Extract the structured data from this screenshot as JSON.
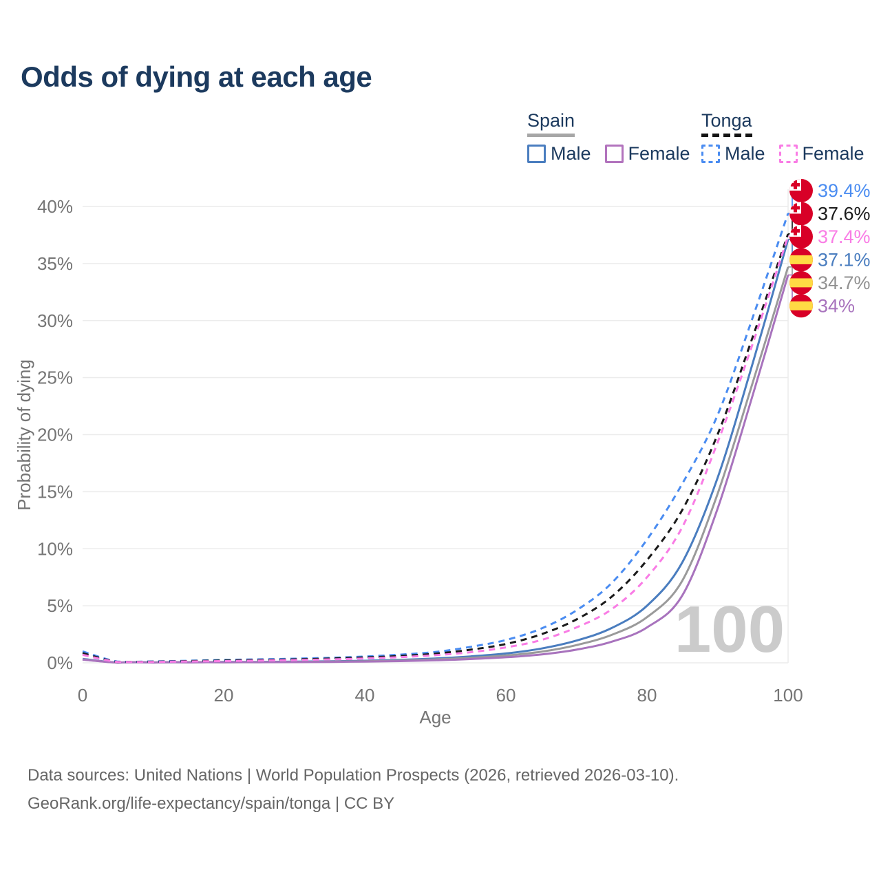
{
  "header": {
    "title": "Odds of dying at each age"
  },
  "legend": {
    "groups": [
      {
        "country": "Spain",
        "line_style": "solid",
        "underline_color": "#a6a6a6",
        "items": [
          {
            "label": "Male",
            "color": "#4a7dbf",
            "dashed": false
          },
          {
            "label": "Female",
            "color": "#b273bd",
            "dashed": false
          }
        ]
      },
      {
        "country": "Tonga",
        "line_style": "dashed",
        "underline_color": "#141414",
        "items": [
          {
            "label": "Male",
            "color": "#4a8cf1",
            "dashed": true
          },
          {
            "label": "Female",
            "color": "#f97ce5",
            "dashed": true
          }
        ]
      }
    ]
  },
  "chart_data": {
    "type": "line",
    "title": "Odds of dying at each age",
    "xlabel": "Age",
    "ylabel": "Probability of dying",
    "xlim": [
      0,
      100
    ],
    "ylim": [
      0,
      41.5
    ],
    "grid": "horizontal",
    "legend_position": "top-right",
    "age_watermark": "100",
    "x_ticks": [
      {
        "v": 0,
        "label": "0"
      },
      {
        "v": 20,
        "label": "20"
      },
      {
        "v": 40,
        "label": "40"
      },
      {
        "v": 60,
        "label": "60"
      },
      {
        "v": 80,
        "label": "80"
      },
      {
        "v": 100,
        "label": "100"
      }
    ],
    "y_ticks": [
      {
        "v": 0,
        "label": "0%"
      },
      {
        "v": 5,
        "label": "5%"
      },
      {
        "v": 10,
        "label": "10%"
      },
      {
        "v": 15,
        "label": "15%"
      },
      {
        "v": 20,
        "label": "20%"
      },
      {
        "v": 25,
        "label": "25%"
      },
      {
        "v": 30,
        "label": "30%"
      },
      {
        "v": 35,
        "label": "35%"
      },
      {
        "v": 40,
        "label": "40%"
      }
    ],
    "x": [
      0,
      5,
      10,
      15,
      20,
      25,
      30,
      35,
      40,
      45,
      50,
      55,
      60,
      65,
      70,
      75,
      80,
      85,
      90,
      95,
      100
    ],
    "series": [
      {
        "id": "tonga-male",
        "name": "Tonga Male",
        "country": "Tonga",
        "flag": "tonga",
        "color": "#4a8cf1",
        "label_color": "#4a8cf1",
        "dashed": true,
        "end_label": "39.4%",
        "values": [
          1.0,
          0.1,
          0.12,
          0.18,
          0.25,
          0.3,
          0.36,
          0.44,
          0.55,
          0.72,
          0.95,
          1.4,
          2.0,
          3.0,
          4.6,
          7.0,
          10.8,
          15.7,
          21.7,
          30.3,
          39.4
        ]
      },
      {
        "id": "tonga-total",
        "name": "Tonga",
        "country": "Tonga",
        "flag": "tonga",
        "color": "#1a1a1a",
        "label_color": "#1a1a1a",
        "dashed": true,
        "end_label": "37.6%",
        "values": [
          0.85,
          0.08,
          0.1,
          0.15,
          0.2,
          0.25,
          0.3,
          0.37,
          0.47,
          0.6,
          0.8,
          1.15,
          1.65,
          2.5,
          3.8,
          5.8,
          9.0,
          13.4,
          20.0,
          28.6,
          37.6
        ]
      },
      {
        "id": "tonga-female",
        "name": "Tonga Female",
        "country": "Tonga",
        "flag": "tonga",
        "color": "#f97ce5",
        "label_color": "#f97ce5",
        "dashed": true,
        "end_label": "37.4%",
        "values": [
          0.7,
          0.07,
          0.08,
          0.12,
          0.15,
          0.2,
          0.24,
          0.3,
          0.38,
          0.5,
          0.67,
          0.93,
          1.35,
          2.0,
          3.1,
          4.7,
          7.5,
          11.9,
          19.3,
          28.0,
          37.4
        ]
      },
      {
        "id": "spain-male",
        "name": "Spain Male",
        "country": "Spain",
        "flag": "spain",
        "color": "#4a7dbf",
        "label_color": "#4a7dbf",
        "dashed": false,
        "end_label": "37.1%",
        "values": [
          0.35,
          0.02,
          0.03,
          0.05,
          0.07,
          0.08,
          0.1,
          0.13,
          0.18,
          0.26,
          0.38,
          0.56,
          0.82,
          1.25,
          1.95,
          3.05,
          5.0,
          8.8,
          16.2,
          26.3,
          37.1
        ]
      },
      {
        "id": "spain-total",
        "name": "Spain",
        "country": "Spain",
        "flag": "spain",
        "color": "#9a9a9a",
        "label_color": "#919191",
        "dashed": false,
        "end_label": "34.7%",
        "values": [
          0.3,
          0.02,
          0.03,
          0.04,
          0.05,
          0.06,
          0.08,
          0.1,
          0.14,
          0.2,
          0.3,
          0.44,
          0.64,
          0.97,
          1.55,
          2.45,
          4.0,
          7.2,
          14.8,
          24.6,
          34.7
        ]
      },
      {
        "id": "spain-female",
        "name": "Spain Female",
        "country": "Spain",
        "flag": "spain",
        "color": "#a873bd",
        "label_color": "#a873bd",
        "dashed": false,
        "end_label": "34%",
        "values": [
          0.28,
          0.02,
          0.02,
          0.03,
          0.04,
          0.05,
          0.06,
          0.08,
          0.11,
          0.15,
          0.22,
          0.33,
          0.49,
          0.73,
          1.15,
          1.85,
          3.1,
          5.9,
          13.5,
          23.5,
          34.0
        ]
      }
    ],
    "flag_colors": {
      "tonga": {
        "red": "#d80027",
        "white": "#ffffff"
      },
      "spain": {
        "red": "#d80027",
        "yellow": "#ffda44"
      }
    }
  },
  "footer": {
    "line1": "Data sources: United Nations | World Population Prospects (2026, retrieved 2026-03-10).",
    "line2": "GeoRank.org/life-expectancy/spain/tonga | CC BY"
  }
}
